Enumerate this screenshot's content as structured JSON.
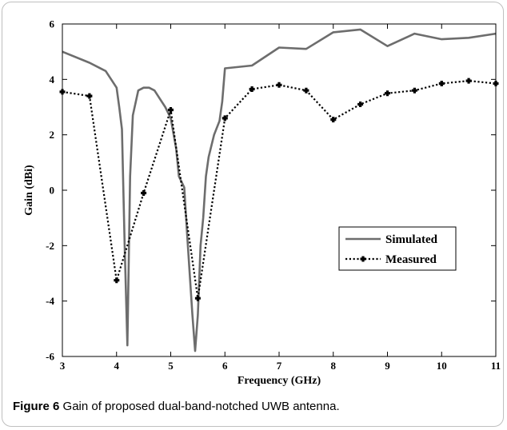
{
  "caption": {
    "figure_label": "Figure 6",
    "text": "Gain of proposed dual-band-notched UWB antenna",
    "period": "."
  },
  "chart_data": {
    "type": "line",
    "xlabel": "Frequency (GHz)",
    "ylabel": "Gain (dBi)",
    "xlim": [
      3,
      11
    ],
    "ylim": [
      -6,
      6
    ],
    "xticks": [
      3,
      4,
      5,
      6,
      7,
      8,
      9,
      10,
      11
    ],
    "yticks": [
      -6,
      -4,
      -2,
      0,
      2,
      4,
      6
    ],
    "grid": false,
    "legend_position": "center-right",
    "series": [
      {
        "name": "Simulated",
        "color": "#6d6d6d",
        "style": "solid",
        "x": [
          3,
          3.5,
          3.8,
          3.9,
          4.0,
          4.05,
          4.1,
          4.15,
          4.2,
          4.25,
          4.3,
          4.4,
          4.5,
          4.6,
          4.7,
          4.8,
          4.9,
          5.0,
          5.1,
          5.15,
          5.2,
          5.25,
          5.3,
          5.35,
          5.4,
          5.45,
          5.5,
          5.55,
          5.6,
          5.65,
          5.7,
          5.8,
          5.9,
          5.95,
          6.0,
          6.5,
          7.0,
          7.5,
          8.0,
          8.5,
          9.0,
          9.5,
          10.0,
          10.5,
          11.0
        ],
        "y": [
          5.0,
          4.6,
          4.3,
          4.0,
          3.7,
          3.0,
          2.2,
          -2.0,
          -5.6,
          0.5,
          2.7,
          3.6,
          3.7,
          3.7,
          3.6,
          3.3,
          3.0,
          2.6,
          1.5,
          0.5,
          0.3,
          0.1,
          -1.5,
          -3.0,
          -4.5,
          -5.8,
          -4.5,
          -2.0,
          -1.0,
          0.5,
          1.2,
          2.0,
          2.5,
          3.2,
          4.4,
          4.5,
          5.15,
          5.1,
          5.7,
          5.8,
          5.2,
          5.65,
          5.45,
          5.5,
          5.65
        ]
      },
      {
        "name": "Measured",
        "color": "#000000",
        "style": "dotted",
        "markers": true,
        "x": [
          3,
          3.5,
          4.0,
          4.5,
          5.0,
          5.5,
          6.0,
          6.5,
          7.0,
          7.5,
          8.0,
          8.5,
          9.0,
          9.5,
          10.0,
          10.5,
          11.0
        ],
        "y": [
          3.55,
          3.4,
          -3.25,
          -0.1,
          2.9,
          -3.9,
          2.6,
          3.65,
          3.8,
          3.6,
          2.55,
          3.1,
          3.5,
          3.6,
          3.85,
          3.95,
          3.85
        ]
      }
    ]
  }
}
